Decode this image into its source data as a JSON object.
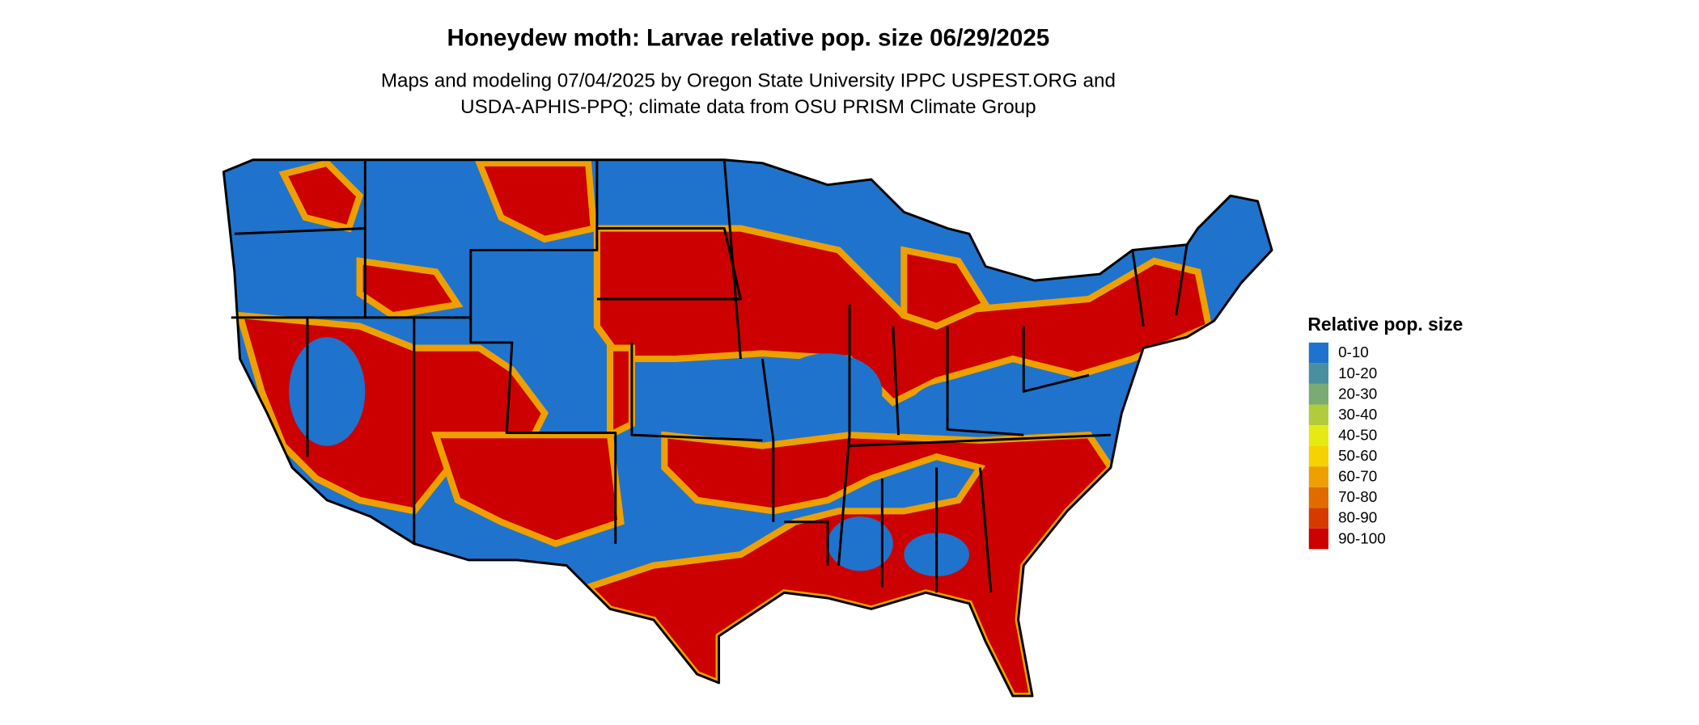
{
  "header": {
    "title": "Honeydew moth: Larvae relative pop. size 06/29/2025",
    "subtitle": [
      "Maps and modeling 07/04/2025 by Oregon State University IPPC USPEST.ORG and",
      "USDA-APHIS-PPQ; climate data from OSU PRISM Climate Group"
    ]
  },
  "legend": {
    "title": "Relative pop. size",
    "items": [
      {
        "label": "0-10",
        "color": "#1f73cc"
      },
      {
        "label": "10-20",
        "color": "#4a8fa0"
      },
      {
        "label": "20-30",
        "color": "#7aab72"
      },
      {
        "label": "30-40",
        "color": "#b0cc3c"
      },
      {
        "label": "40-50",
        "color": "#e5ea14"
      },
      {
        "label": "50-60",
        "color": "#f5d200"
      },
      {
        "label": "60-70",
        "color": "#eea000"
      },
      {
        "label": "70-80",
        "color": "#e26b00"
      },
      {
        "label": "80-90",
        "color": "#d63a00"
      },
      {
        "label": "90-100",
        "color": "#cc0000"
      }
    ]
  }
}
